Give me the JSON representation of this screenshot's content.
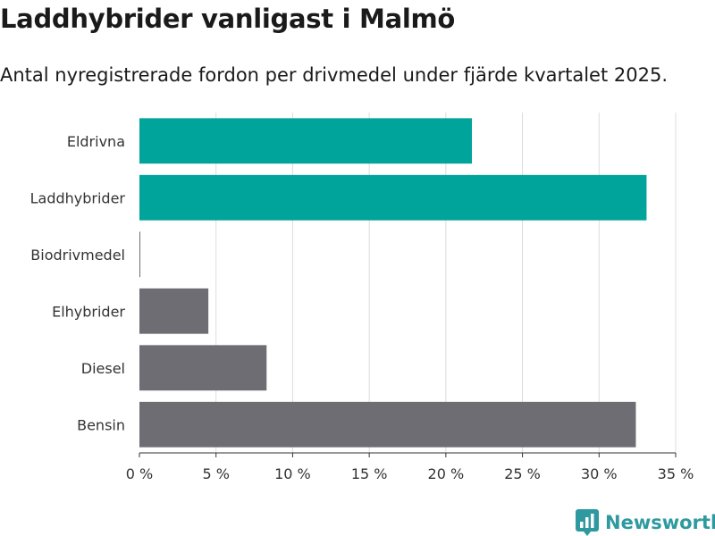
{
  "title": "Laddhybrider vanligast i Malmö",
  "subtitle": "Antal nyregistrerade fordon per drivmedel under fjärde kvartalet 2025.",
  "brand": {
    "name": "Newsworthy",
    "color": "#2e9aa0",
    "icon": "newsworthy-logo-icon"
  },
  "colors": {
    "highlight": "#00a49a",
    "default": "#6e6d73",
    "grid": "#dcdcdc",
    "axis": "#333333"
  },
  "chart_data": {
    "type": "bar",
    "orientation": "horizontal",
    "categories": [
      "Eldrivna",
      "Laddhybrider",
      "Biodrivmedel",
      "Elhybrider",
      "Diesel",
      "Bensin"
    ],
    "values": [
      21.7,
      33.1,
      0.05,
      4.5,
      8.3,
      32.4
    ],
    "highlighted": [
      true,
      true,
      false,
      false,
      false,
      false
    ],
    "xlim": [
      0,
      35
    ],
    "xticks": [
      0,
      5,
      10,
      15,
      20,
      25,
      30,
      35
    ],
    "xtick_labels": [
      "0 %",
      "5 %",
      "10 %",
      "15 %",
      "20 %",
      "25 %",
      "30 %",
      "35 %"
    ],
    "grid": true
  }
}
